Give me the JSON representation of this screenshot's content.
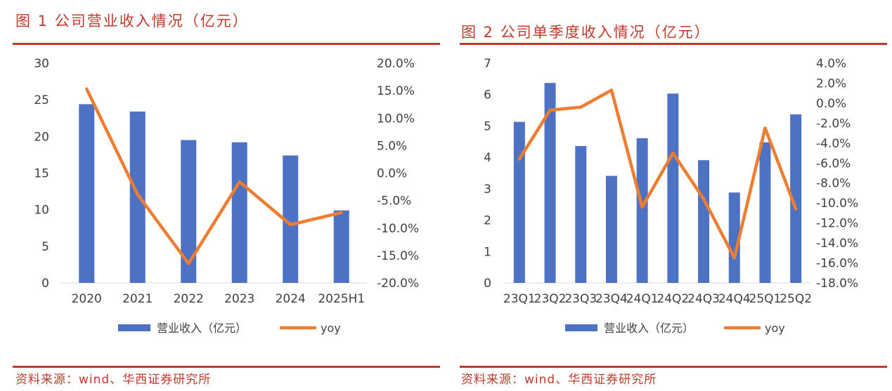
{
  "colors": {
    "bar": "#4e72c3",
    "line": "#ed7d31",
    "accent": "#c0392b",
    "axis_text": "#404040",
    "axis_line": "#d9d9d9"
  },
  "figure1": {
    "title": "图 1  公司营业收入情况（亿元）",
    "source": "资料来源：wind、华西证券研究所"
  },
  "figure2": {
    "title": "图 2  公司单季度收入情况（亿元）",
    "source": "资料来源：wind、华西证券研究所"
  },
  "chart_data": [
    {
      "type": "bar",
      "categories": [
        "2020",
        "2021",
        "2022",
        "2023",
        "2024",
        "2025H1"
      ],
      "series": [
        {
          "name": "营业收入（亿元）",
          "type": "bar",
          "axis": "left",
          "values": [
            24.4,
            23.4,
            19.5,
            19.2,
            17.4,
            9.9
          ]
        },
        {
          "name": "yoy",
          "type": "line",
          "axis": "right",
          "values": [
            15.3,
            -3.9,
            -16.5,
            -1.6,
            -9.4,
            -7.2
          ]
        }
      ],
      "left_axis": {
        "ylim": [
          0,
          30
        ],
        "ticks": [
          "0",
          "5",
          "10",
          "15",
          "20",
          "25",
          "30"
        ]
      },
      "right_axis": {
        "ylim": [
          -20,
          20
        ],
        "ticks": [
          "-20.0%",
          "-15.0%",
          "-10.0%",
          "-5.0%",
          "0.0%",
          "5.0%",
          "10.0%",
          "15.0%",
          "20.0%"
        ]
      },
      "legend": {
        "position": "bottom",
        "labels": [
          "营业收入（亿元）",
          "yoy"
        ]
      },
      "grid": false
    },
    {
      "type": "bar",
      "categories": [
        "23Q1",
        "23Q2",
        "23Q3",
        "23Q4",
        "24Q1",
        "24Q2",
        "24Q3",
        "24Q4",
        "25Q1",
        "25Q2"
      ],
      "series": [
        {
          "name": "营业收入（亿元）",
          "type": "bar",
          "axis": "left",
          "values": [
            5.13,
            6.37,
            4.36,
            3.41,
            4.61,
            6.03,
            3.91,
            2.88,
            4.48,
            5.37
          ]
        },
        {
          "name": "yoy",
          "type": "line",
          "axis": "right",
          "values": [
            -5.6,
            -0.7,
            -0.4,
            1.3,
            -10.4,
            -5.0,
            -9.6,
            -15.5,
            -2.5,
            -10.6
          ]
        }
      ],
      "left_axis": {
        "ylim": [
          0,
          7
        ],
        "ticks": [
          "0",
          "1",
          "2",
          "3",
          "4",
          "5",
          "6",
          "7"
        ]
      },
      "right_axis": {
        "ylim": [
          -18,
          4
        ],
        "ticks": [
          "-18.0%",
          "-16.0%",
          "-14.0%",
          "-12.0%",
          "-10.0%",
          "-8.0%",
          "-6.0%",
          "-4.0%",
          "-2.0%",
          "0.0%",
          "2.0%",
          "4.0%"
        ]
      },
      "legend": {
        "position": "bottom",
        "labels": [
          "营业收入（亿元）",
          "yoy"
        ]
      },
      "grid": false
    }
  ]
}
